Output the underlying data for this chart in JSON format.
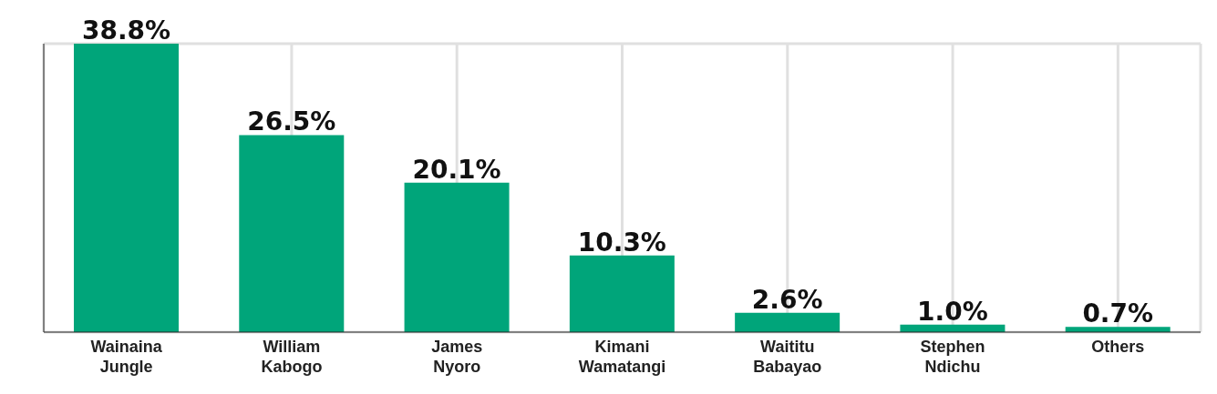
{
  "chart_data": {
    "type": "bar",
    "categories": [
      "Wainaina Jungle",
      "William Kabogo",
      "James Nyoro",
      "Kimani Wamatangi",
      "Waititu Babayao",
      "Stephen Ndichu",
      "Others"
    ],
    "values": [
      38.8,
      26.5,
      20.1,
      10.3,
      2.6,
      1.0,
      0.7
    ],
    "value_labels": [
      "38.8%",
      "26.5%",
      "20.1%",
      "10.3%",
      "2.6%",
      "1.0%",
      "0.7%"
    ],
    "color": "#00a57a",
    "grid": true,
    "tick_labels": "x"
  }
}
